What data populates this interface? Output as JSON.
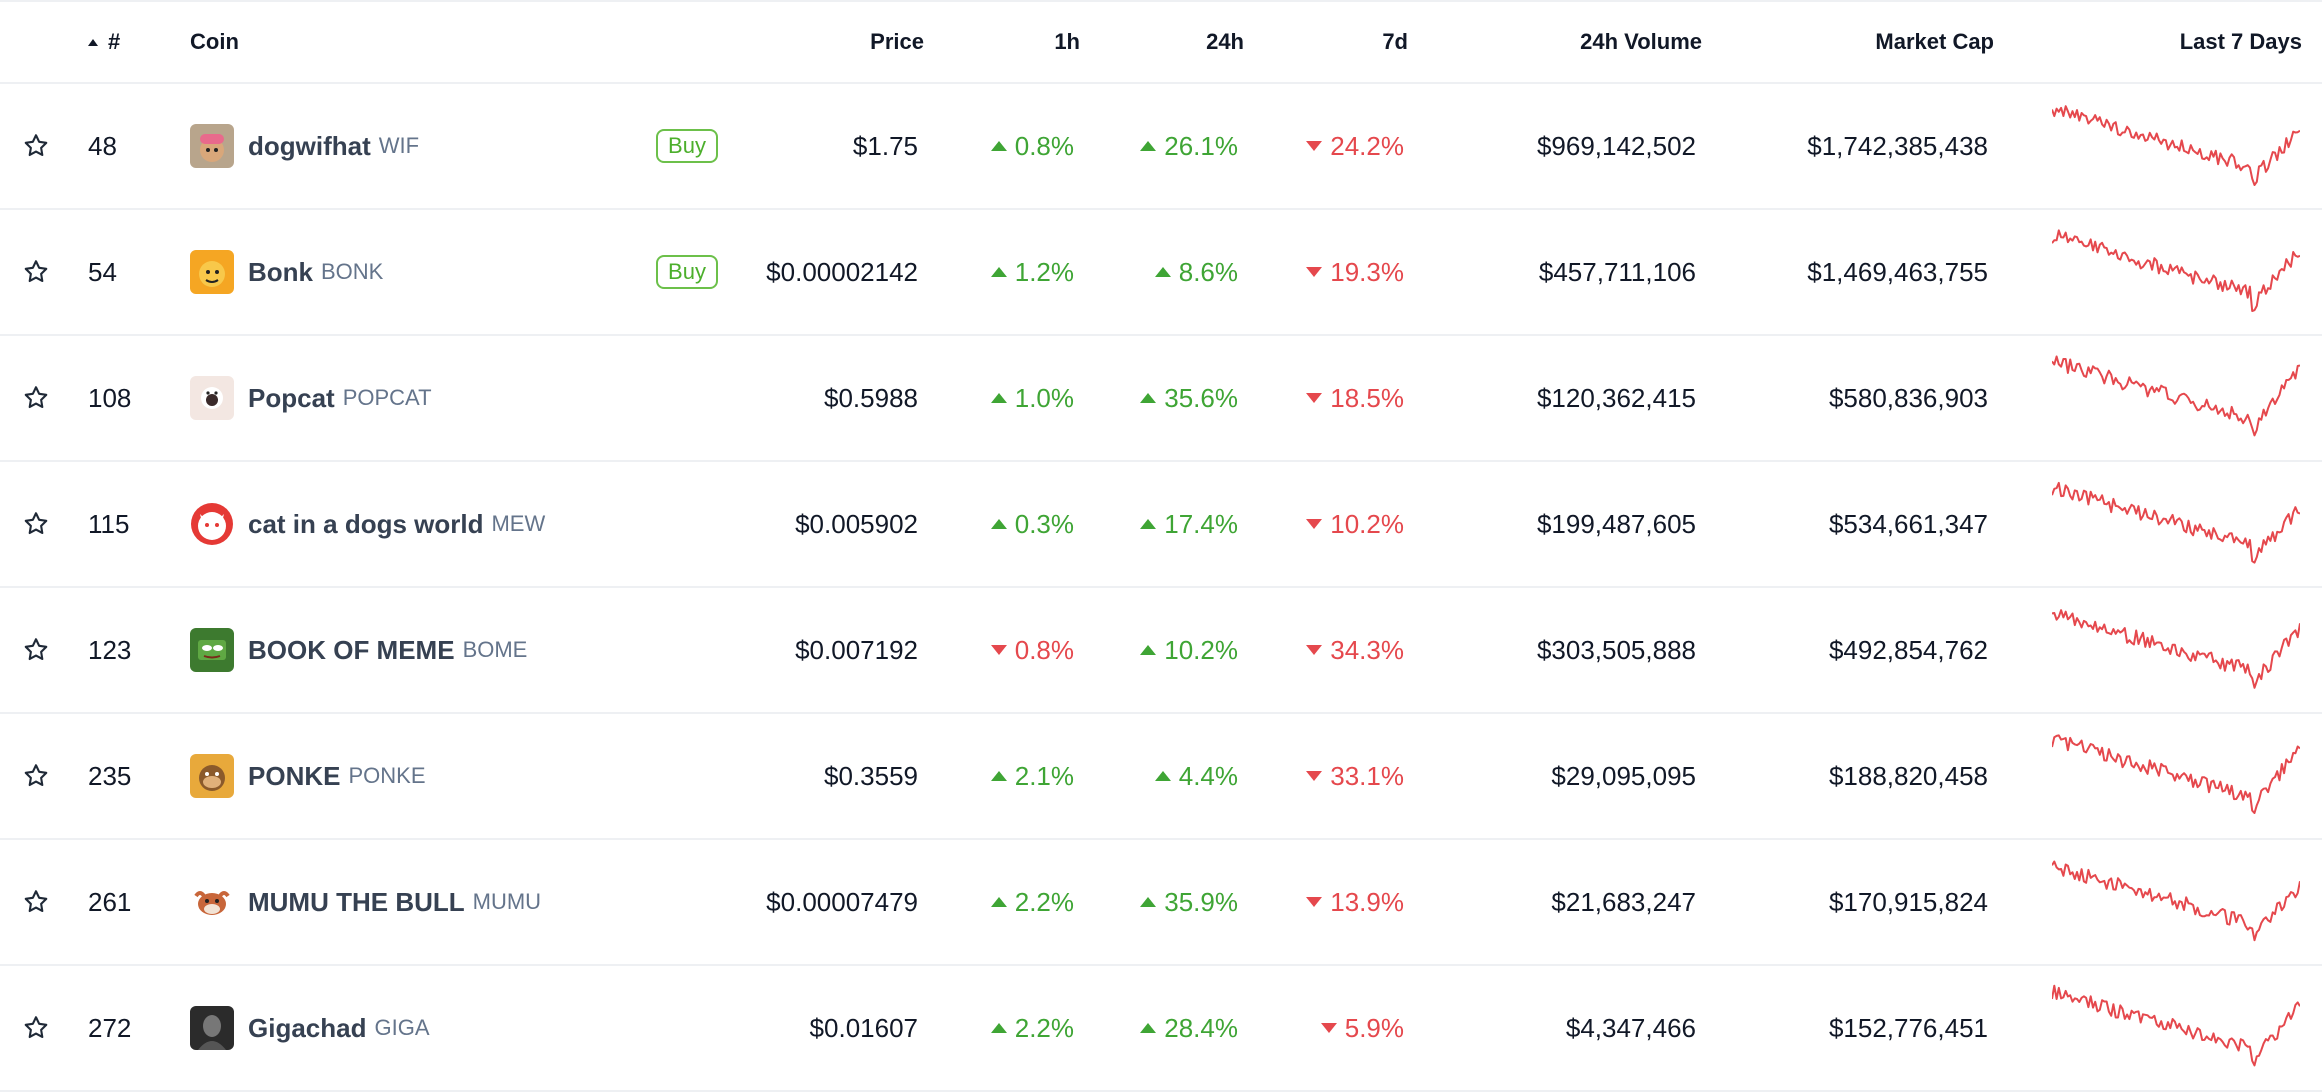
{
  "header": {
    "rank": "#",
    "coin": "Coin",
    "price": "Price",
    "h1": "1h",
    "h24": "24h",
    "d7": "7d",
    "volume": "24h Volume",
    "market_cap": "Market Cap",
    "last7": "Last 7 Days"
  },
  "buy_label": "Buy",
  "colors": {
    "up": "#3fa535",
    "down": "#e5484d",
    "buy": "#4caf2c"
  },
  "rows": [
    {
      "rank": "48",
      "name": "dogwifhat",
      "symbol": "WIF",
      "buy": true,
      "price": "$1.75",
      "h1": "0.8%",
      "h1_dir": "up",
      "h24": "26.1%",
      "h24_dir": "up",
      "d7": "24.2%",
      "d7_dir": "down",
      "volume": "$969,142,502",
      "market_cap": "$1,742,385,438",
      "logo": "wif-logo"
    },
    {
      "rank": "54",
      "name": "Bonk",
      "symbol": "BONK",
      "buy": true,
      "price": "$0.00002142",
      "h1": "1.2%",
      "h1_dir": "up",
      "h24": "8.6%",
      "h24_dir": "up",
      "d7": "19.3%",
      "d7_dir": "down",
      "volume": "$457,711,106",
      "market_cap": "$1,469,463,755",
      "logo": "bonk-logo"
    },
    {
      "rank": "108",
      "name": "Popcat",
      "symbol": "POPCAT",
      "buy": false,
      "price": "$0.5988",
      "h1": "1.0%",
      "h1_dir": "up",
      "h24": "35.6%",
      "h24_dir": "up",
      "d7": "18.5%",
      "d7_dir": "down",
      "volume": "$120,362,415",
      "market_cap": "$580,836,903",
      "logo": "popcat-logo"
    },
    {
      "rank": "115",
      "name": "cat in a dogs world",
      "symbol": "MEW",
      "buy": false,
      "price": "$0.005902",
      "h1": "0.3%",
      "h1_dir": "up",
      "h24": "17.4%",
      "h24_dir": "up",
      "d7": "10.2%",
      "d7_dir": "down",
      "volume": "$199,487,605",
      "market_cap": "$534,661,347",
      "logo": "mew-logo"
    },
    {
      "rank": "123",
      "name": "BOOK OF MEME",
      "symbol": "BOME",
      "buy": false,
      "price": "$0.007192",
      "h1": "0.8%",
      "h1_dir": "down",
      "h24": "10.2%",
      "h24_dir": "up",
      "d7": "34.3%",
      "d7_dir": "down",
      "volume": "$303,505,888",
      "market_cap": "$492,854,762",
      "logo": "bome-logo"
    },
    {
      "rank": "235",
      "name": "PONKE",
      "symbol": "PONKE",
      "buy": false,
      "price": "$0.3559",
      "h1": "2.1%",
      "h1_dir": "up",
      "h24": "4.4%",
      "h24_dir": "up",
      "d7": "33.1%",
      "d7_dir": "down",
      "volume": "$29,095,095",
      "market_cap": "$188,820,458",
      "logo": "ponke-logo"
    },
    {
      "rank": "261",
      "name": "MUMU THE BULL",
      "symbol": "MUMU",
      "buy": false,
      "price": "$0.00007479",
      "h1": "2.2%",
      "h1_dir": "up",
      "h24": "35.9%",
      "h24_dir": "up",
      "d7": "13.9%",
      "d7_dir": "down",
      "volume": "$21,683,247",
      "market_cap": "$170,915,824",
      "logo": "mumu-logo"
    },
    {
      "rank": "272",
      "name": "Gigachad",
      "symbol": "GIGA",
      "buy": false,
      "price": "$0.01607",
      "h1": "2.2%",
      "h1_dir": "up",
      "h24": "28.4%",
      "h24_dir": "up",
      "d7": "5.9%",
      "d7_dir": "down",
      "volume": "$4,347,466",
      "market_cap": "$152,776,451",
      "logo": "giga-logo"
    }
  ]
}
